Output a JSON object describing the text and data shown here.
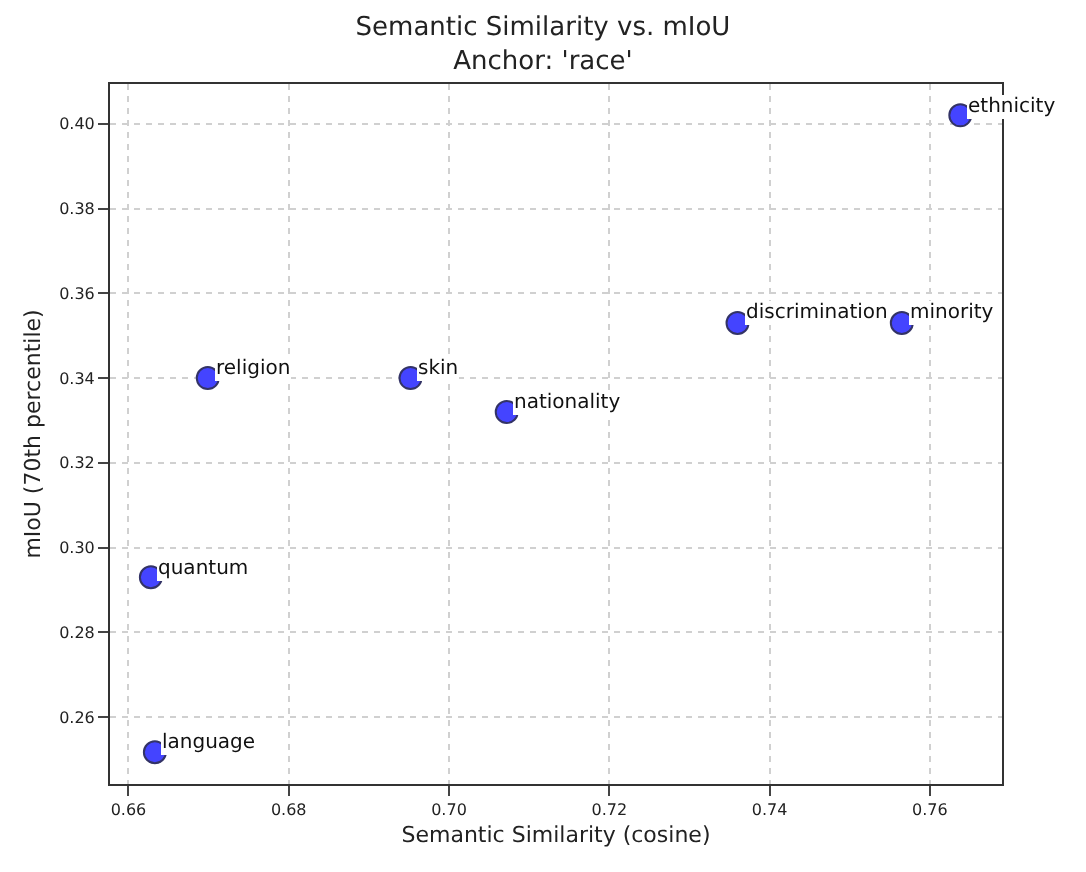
{
  "chart_data": {
    "type": "scatter",
    "title": "Semantic Similarity vs. mIoU",
    "subtitle": "Anchor: 'race'",
    "xlabel": "Semantic Similarity (cosine)",
    "ylabel": "mIoU (70th percentile)",
    "x": [
      0.6628,
      0.6633,
      0.6699,
      0.6952,
      0.7072,
      0.736,
      0.7565,
      0.7638
    ],
    "series": [
      {
        "color": "#4444ff",
        "values": [
          0.293,
          0.2517,
          0.34,
          0.34,
          0.332,
          0.353,
          0.353,
          0.402
        ]
      }
    ],
    "annotations": [
      {
        "text": "quantum",
        "x": 0.6628,
        "y": 0.293
      },
      {
        "text": "language",
        "x": 0.6633,
        "y": 0.2517
      },
      {
        "text": "religion",
        "x": 0.6699,
        "y": 0.34
      },
      {
        "text": "skin",
        "x": 0.6952,
        "y": 0.34
      },
      {
        "text": "nationality",
        "x": 0.7072,
        "y": 0.332
      },
      {
        "text": "discrimination",
        "x": 0.736,
        "y": 0.353
      },
      {
        "text": "minority",
        "x": 0.7565,
        "y": 0.353
      },
      {
        "text": "ethnicity",
        "x": 0.7638,
        "y": 0.402
      }
    ],
    "xlim": [
      0.6577,
      0.769
    ],
    "xticks": [
      {
        "value": 0.66,
        "label": "0.66"
      },
      {
        "value": 0.68,
        "label": "0.68"
      },
      {
        "value": 0.7,
        "label": "0.70"
      },
      {
        "value": 0.72,
        "label": "0.72"
      },
      {
        "value": 0.74,
        "label": "0.74"
      },
      {
        "value": 0.76,
        "label": "0.76"
      }
    ],
    "ylim": [
      0.2442,
      0.4094
    ],
    "yticks": [
      {
        "value": 0.26,
        "label": "0.26"
      },
      {
        "value": 0.28,
        "label": "0.28"
      },
      {
        "value": 0.3,
        "label": "0.30"
      },
      {
        "value": 0.32,
        "label": "0.32"
      },
      {
        "value": 0.34,
        "label": "0.34"
      },
      {
        "value": 0.36,
        "label": "0.36"
      },
      {
        "value": 0.38,
        "label": "0.38"
      },
      {
        "value": 0.4,
        "label": "0.40"
      }
    ],
    "grid": true,
    "marker": "circle"
  }
}
